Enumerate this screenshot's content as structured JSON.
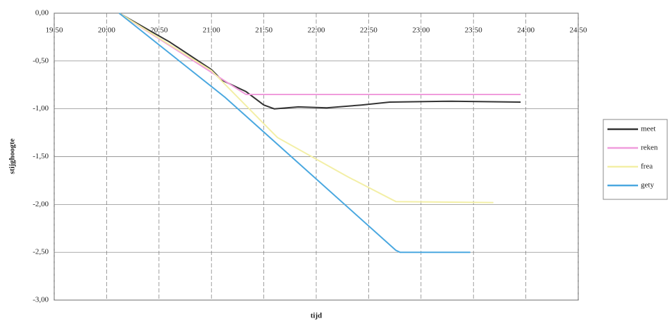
{
  "chart_data": {
    "type": "line",
    "x_label": "tijd",
    "y_label": "stijghoogte",
    "xlim": [
      19.5,
      24.5
    ],
    "xticks": [
      {
        "value": 19.5,
        "label": "19:50"
      },
      {
        "value": 20,
        "label": "20:00"
      },
      {
        "value": 20.5,
        "label": "20:50"
      },
      {
        "value": 21,
        "label": "21:00"
      },
      {
        "value": 21.5,
        "label": "21:50"
      },
      {
        "value": 22,
        "label": "22:00"
      },
      {
        "value": 22.5,
        "label": "22:50"
      },
      {
        "value": 23,
        "label": "23:00"
      },
      {
        "value": 23.5,
        "label": "23:50"
      },
      {
        "value": 24,
        "label": "24:00"
      },
      {
        "value": 24.5,
        "label": "24:50"
      }
    ],
    "ylim": [
      -3,
      0
    ],
    "yticks": [
      {
        "value": 0,
        "label": "0,00"
      },
      {
        "value": -0.5,
        "label": "-0,50"
      },
      {
        "value": -1,
        "label": "-1,00"
      },
      {
        "value": -1.5,
        "label": "-1,50"
      },
      {
        "value": -2,
        "label": "-2,00"
      },
      {
        "value": -2.5,
        "label": "-2,50"
      },
      {
        "value": -3,
        "label": "-3,00"
      }
    ],
    "grid": true,
    "legend": "right",
    "series": [
      {
        "name": "meet",
        "color": "#333333",
        "x": [
          20.12,
          20.6,
          21.0,
          21.1,
          21.33,
          21.5,
          21.6,
          21.83,
          22.1,
          22.43,
          22.7,
          23.29,
          23.95
        ],
        "values": [
          0,
          -0.3,
          -0.59,
          -0.7,
          -0.82,
          -0.96,
          -1.0,
          -0.98,
          -0.99,
          -0.96,
          -0.93,
          -0.92,
          -0.93
        ]
      },
      {
        "name": "reken",
        "color": "#f09cdc",
        "x": [
          20.12,
          21.33,
          23.95
        ],
        "values": [
          0,
          -0.85,
          -0.85
        ]
      },
      {
        "name": "frea",
        "color": "#f3efa6",
        "x": [
          20.12,
          21.0,
          21.63,
          22.3,
          22.76,
          23.69
        ],
        "values": [
          0,
          -0.6,
          -1.3,
          -1.71,
          -1.97,
          -1.98
        ]
      },
      {
        "name": "gety",
        "color": "#4aa8e0",
        "x": [
          20.12,
          21.13,
          22.76,
          22.8,
          23.47
        ],
        "values": [
          0,
          -0.88,
          -2.48,
          -2.5,
          -2.5
        ]
      }
    ]
  }
}
